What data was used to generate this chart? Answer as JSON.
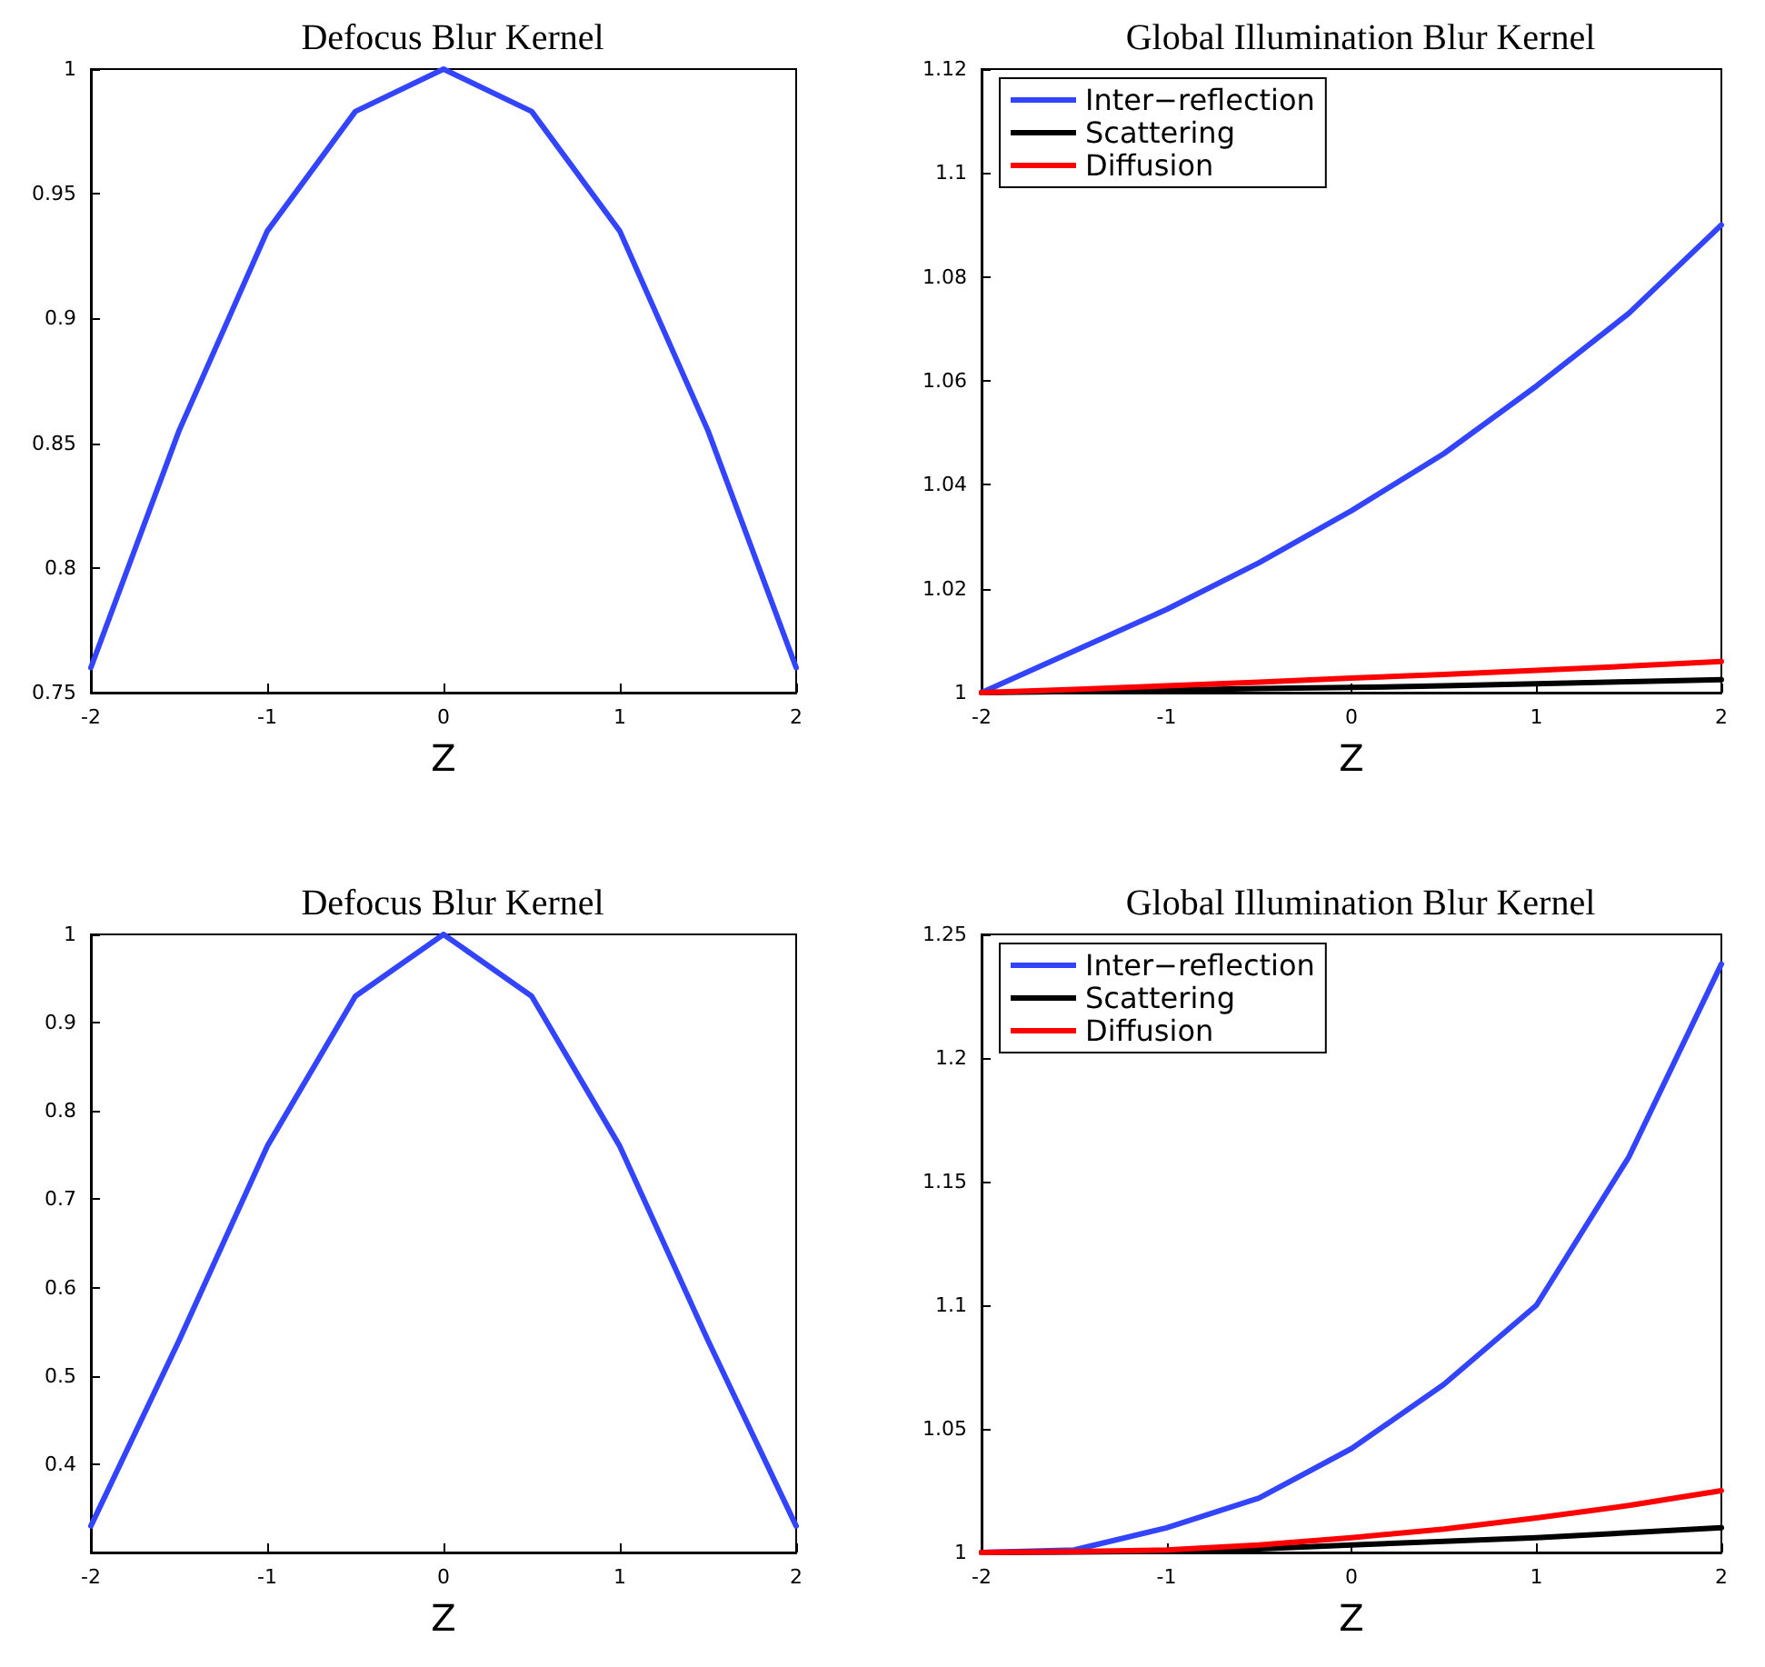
{
  "chart_data": [
    {
      "type": "line",
      "title": "Defocus Blur Kernel",
      "xlabel": "Z",
      "x": [
        -2,
        -1.5,
        -1,
        -0.5,
        0,
        0.5,
        1,
        1.5,
        2
      ],
      "series": [
        {
          "color": "#3344ff",
          "values": [
            0.76,
            0.855,
            0.935,
            0.983,
            1,
            0.983,
            0.935,
            0.855,
            0.76
          ]
        }
      ],
      "xlim": [
        -2,
        2
      ],
      "xticks": [
        -2,
        -1,
        0,
        1,
        2
      ],
      "ylim": [
        0.75,
        1
      ],
      "yticks": [
        0.75,
        0.8,
        0.85,
        0.9,
        0.95,
        1
      ],
      "grid": false,
      "legend": false,
      "marker": "none",
      "line_style": "solid"
    },
    {
      "type": "line",
      "title": "Global Illumination Blur Kernel",
      "xlabel": "Z",
      "x": [
        -2,
        -1.5,
        -1,
        -0.5,
        0,
        0.5,
        1,
        1.5,
        2
      ],
      "series": [
        {
          "name": "Inter−reflection",
          "color": "#3344ff",
          "values": [
            1,
            1.008,
            1.016,
            1.025,
            1.035,
            1.046,
            1.059,
            1.073,
            1.09
          ]
        },
        {
          "name": "Scattering",
          "color": "#000000",
          "values": [
            1,
            1.0002,
            1.0005,
            1.0008,
            1.001,
            1.0013,
            1.0017,
            1.0021,
            1.0025
          ]
        },
        {
          "name": "Diffusion",
          "color": "#ff0000",
          "values": [
            1,
            1.0006,
            1.0013,
            1.002,
            1.0028,
            1.0035,
            1.0043,
            1.0051,
            1.006
          ]
        }
      ],
      "xlim": [
        -2,
        2
      ],
      "xticks": [
        -2,
        -1,
        0,
        1,
        2
      ],
      "ylim": [
        1,
        1.12
      ],
      "yticks": [
        1,
        1.02,
        1.04,
        1.06,
        1.08,
        1.1,
        1.12
      ],
      "grid": false,
      "legend": "top left",
      "marker": "none",
      "line_style": "solid"
    },
    {
      "type": "line",
      "title": "Defocus Blur Kernel",
      "xlabel": "Z",
      "x": [
        -2,
        -1.5,
        -1,
        -0.5,
        0,
        0.5,
        1,
        1.5,
        2
      ],
      "series": [
        {
          "color": "#3344ff",
          "values": [
            0.33,
            0.54,
            0.76,
            0.93,
            1,
            0.93,
            0.76,
            0.54,
            0.33
          ]
        }
      ],
      "xlim": [
        -2,
        2
      ],
      "xticks": [
        -2,
        -1,
        0,
        1,
        2
      ],
      "ylim": [
        0.3,
        1
      ],
      "yticks": [
        0.4,
        0.5,
        0.6,
        0.7,
        0.8,
        0.9,
        1
      ],
      "grid": false,
      "legend": false,
      "marker": "none",
      "line_style": "solid"
    },
    {
      "type": "line",
      "title": "Global Illumination Blur Kernel",
      "xlabel": "Z",
      "x": [
        -2,
        -1.5,
        -1,
        -0.5,
        0,
        0.5,
        1,
        1.5,
        2
      ],
      "series": [
        {
          "name": "Inter−reflection",
          "color": "#3344ff",
          "values": [
            1,
            1.001,
            1.01,
            1.022,
            1.042,
            1.068,
            1.1,
            1.16,
            1.238
          ]
        },
        {
          "name": "Scattering",
          "color": "#000000",
          "values": [
            1,
            1.0002,
            1.0005,
            1.0015,
            1.003,
            1.0045,
            1.006,
            1.008,
            1.01
          ]
        },
        {
          "name": "Diffusion",
          "color": "#ff0000",
          "values": [
            1,
            1.0004,
            1.001,
            1.003,
            1.006,
            1.0095,
            1.014,
            1.019,
            1.025
          ]
        }
      ],
      "xlim": [
        -2,
        2
      ],
      "xticks": [
        -2,
        -1,
        0,
        1,
        2
      ],
      "ylim": [
        1,
        1.25
      ],
      "yticks": [
        1,
        1.05,
        1.1,
        1.15,
        1.2,
        1.25
      ],
      "grid": false,
      "legend": "top left",
      "marker": "none",
      "line_style": "solid"
    }
  ]
}
